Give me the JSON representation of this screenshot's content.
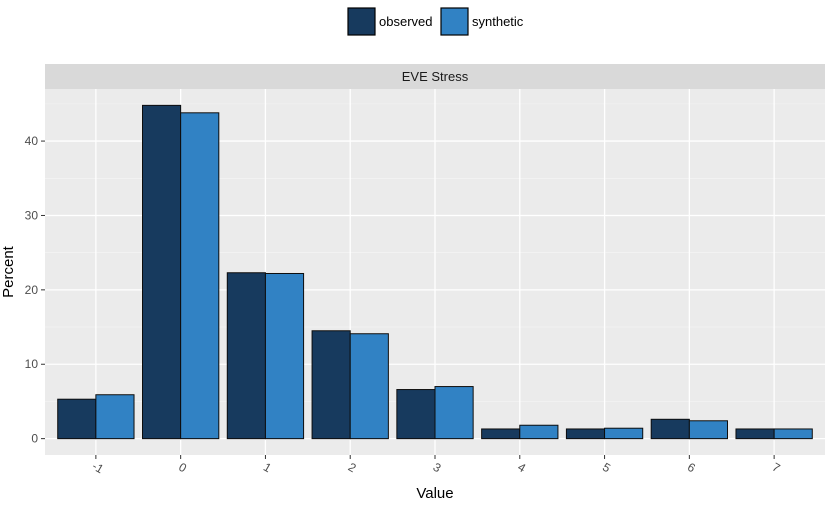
{
  "chart_data": {
    "type": "bar",
    "facet_title": "EVE Stress",
    "xlabel": "Value",
    "ylabel": "Percent",
    "categories": [
      "-1",
      "0",
      "1",
      "2",
      "3",
      "4",
      "5",
      "6",
      "7"
    ],
    "ylim": [
      -2.2,
      47
    ],
    "yticks": [
      0,
      10,
      20,
      30,
      40
    ],
    "legend_position": "top",
    "grid": true,
    "series": [
      {
        "name": "observed",
        "color": "#173a5e",
        "values": [
          5.3,
          44.8,
          22.3,
          14.5,
          6.6,
          1.3,
          1.3,
          2.6,
          1.3
        ]
      },
      {
        "name": "synthetic",
        "color": "#3182c4",
        "values": [
          5.9,
          43.8,
          22.2,
          14.1,
          7.0,
          1.8,
          1.4,
          2.4,
          1.3
        ]
      }
    ]
  }
}
